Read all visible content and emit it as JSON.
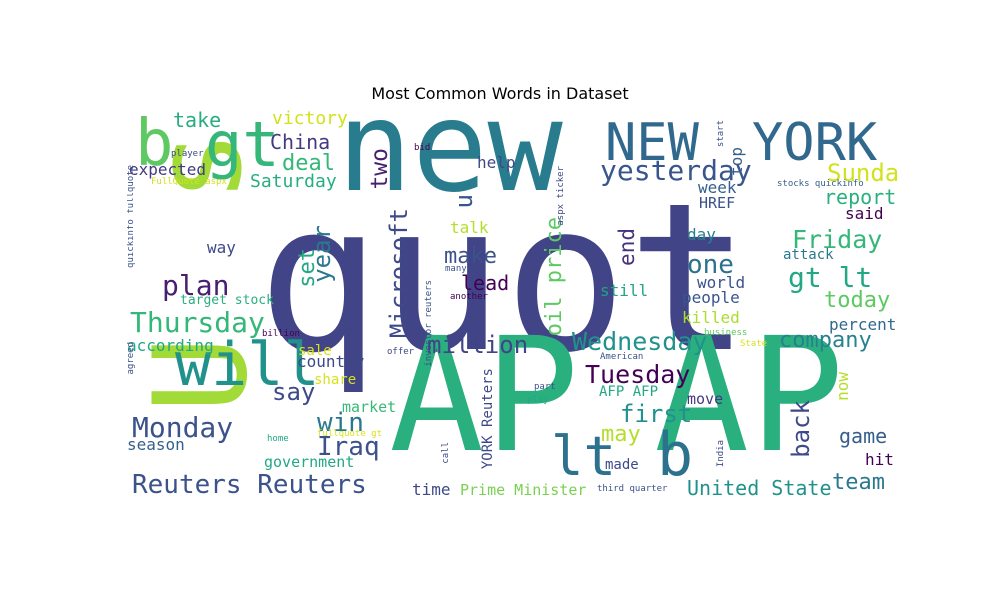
{
  "title": "Most Common Words in Dataset",
  "words": [
    {
      "text": "quot",
      "color": "#414487"
    },
    {
      "text": "new",
      "color": "#287c8e"
    },
    {
      "text": "AP",
      "color": "#2ab07f"
    },
    {
      "text": "AP",
      "color": "#2ab07f"
    },
    {
      "text": "s",
      "color": "#a2da37"
    },
    {
      "text": "U",
      "color": "#a2da37"
    },
    {
      "text": "NEW",
      "color": "#31688e"
    },
    {
      "text": "YORK",
      "color": "#31688e"
    },
    {
      "text": "b",
      "color": "#5ec962"
    },
    {
      "text": "gt",
      "color": "#35b779"
    },
    {
      "text": "will",
      "color": "#21918c"
    },
    {
      "text": "lt",
      "color": "#2c728e"
    },
    {
      "text": "b",
      "color": "#2c728e"
    },
    {
      "text": "Thursday",
      "color": "#35b779"
    },
    {
      "text": "Monday",
      "color": "#3b528b"
    },
    {
      "text": "Reuters Reuters",
      "color": "#3b528b"
    },
    {
      "text": "yesterday",
      "color": "#39568c"
    },
    {
      "text": "Sunday",
      "color": "#d2e21b"
    },
    {
      "text": "Friday",
      "color": "#35b779"
    },
    {
      "text": "gt lt",
      "color": "#22a884"
    },
    {
      "text": "Wednesday",
      "color": "#21918c"
    },
    {
      "text": "Tuesday",
      "color": "#440154"
    },
    {
      "text": "oil price",
      "color": "#5ec962"
    },
    {
      "text": "Microsoft",
      "color": "#3e4989"
    },
    {
      "text": "plan",
      "color": "#481f70"
    },
    {
      "text": "million",
      "color": "#414487"
    },
    {
      "text": "one",
      "color": "#2c728e"
    },
    {
      "text": "end",
      "color": "#46327e"
    },
    {
      "text": "make",
      "color": "#3b528b"
    },
    {
      "text": "lead",
      "color": "#440154"
    },
    {
      "text": "year",
      "color": "#2a788e"
    },
    {
      "text": "set",
      "color": "#22a884"
    },
    {
      "text": "win",
      "color": "#2a788e"
    },
    {
      "text": "say",
      "color": "#3e4989"
    },
    {
      "text": "Iraq",
      "color": "#3b528b"
    },
    {
      "text": "first",
      "color": "#21918c"
    },
    {
      "text": "may",
      "color": "#b5de2b"
    },
    {
      "text": "back",
      "color": "#3e4989"
    },
    {
      "text": "game",
      "color": "#355f8d"
    },
    {
      "text": "team",
      "color": "#2a788e"
    },
    {
      "text": "company",
      "color": "#26828e"
    },
    {
      "text": "today",
      "color": "#5ec962"
    },
    {
      "text": "report",
      "color": "#2ab07f"
    },
    {
      "text": "United State",
      "color": "#21918c"
    },
    {
      "text": "two",
      "color": "#481f70"
    },
    {
      "text": "deal",
      "color": "#35b779"
    },
    {
      "text": "China",
      "color": "#443983"
    },
    {
      "text": "take",
      "color": "#27ad81"
    },
    {
      "text": "victory",
      "color": "#d2e21b"
    },
    {
      "text": "Saturday",
      "color": "#27ad81"
    },
    {
      "text": "expected",
      "color": "#443983"
    },
    {
      "text": "u",
      "color": "#39568c"
    },
    {
      "text": "week",
      "color": "#355f8d"
    },
    {
      "text": "top",
      "color": "#355f8d"
    },
    {
      "text": "HREF",
      "color": "#3b528b"
    },
    {
      "text": "help",
      "color": "#3e4989"
    },
    {
      "text": "talk",
      "color": "#b5de2b"
    },
    {
      "text": "way",
      "color": "#3e4989"
    },
    {
      "text": "day",
      "color": "#26828e"
    },
    {
      "text": "said",
      "color": "#440154"
    },
    {
      "text": "attack",
      "color": "#2a788e"
    },
    {
      "text": "world",
      "color": "#3b528b"
    },
    {
      "text": "people",
      "color": "#39568c"
    },
    {
      "text": "killed",
      "color": "#addc30"
    },
    {
      "text": "percent",
      "color": "#31688e"
    },
    {
      "text": "still",
      "color": "#20a386"
    },
    {
      "text": "according",
      "color": "#22a884"
    },
    {
      "text": "country",
      "color": "#3e4989"
    },
    {
      "text": "sale",
      "color": "#d8e219"
    },
    {
      "text": "share",
      "color": "#d8e219"
    },
    {
      "text": "market",
      "color": "#38b977"
    },
    {
      "text": "season",
      "color": "#355f8d"
    },
    {
      "text": "government",
      "color": "#22a884"
    },
    {
      "text": "time",
      "color": "#3e4989"
    },
    {
      "text": "Prime Minister",
      "color": "#7ad151"
    },
    {
      "text": "made",
      "color": "#3e4989"
    },
    {
      "text": "move",
      "color": "#443983"
    },
    {
      "text": "AFP AFP",
      "color": "#22a884"
    },
    {
      "text": "now",
      "color": "#b5de2b"
    },
    {
      "text": "hit",
      "color": "#440154"
    },
    {
      "text": "YORK Reuters",
      "color": "#3e4989"
    },
    {
      "text": "target stock",
      "color": "#2ab07f"
    },
    {
      "text": "quickinfo fullquote",
      "color": "#3b528b"
    },
    {
      "text": "player",
      "color": "#3e4989"
    },
    {
      "text": "FullQuote aspx",
      "color": "#d2e21b"
    },
    {
      "text": "bid",
      "color": "#440154"
    },
    {
      "text": "start",
      "color": "#3b528b"
    },
    {
      "text": "stocks quickinfo",
      "color": "#355f8d"
    },
    {
      "text": "aspx ticker",
      "color": "#3e4989"
    },
    {
      "text": "investor reuters",
      "color": "#3b528b"
    },
    {
      "text": "many",
      "color": "#3b528b"
    },
    {
      "text": "another",
      "color": "#440154"
    },
    {
      "text": "billion",
      "color": "#440154"
    },
    {
      "text": "offer",
      "color": "#3e4989"
    },
    {
      "text": "agreed",
      "color": "#3b528b"
    },
    {
      "text": "home",
      "color": "#22a884"
    },
    {
      "text": "fullquote gt",
      "color": "#d8e219"
    },
    {
      "text": "business",
      "color": "#5ec962"
    },
    {
      "text": "State",
      "color": "#d8e219"
    },
    {
      "text": "American",
      "color": "#3b528b"
    },
    {
      "text": "part",
      "color": "#3b528b"
    },
    {
      "text": "play",
      "color": "#22a884"
    },
    {
      "text": "call",
      "color": "#3e4989"
    },
    {
      "text": "India",
      "color": "#3e4989"
    },
    {
      "text": "third quarter",
      "color": "#3b528b"
    }
  ]
}
